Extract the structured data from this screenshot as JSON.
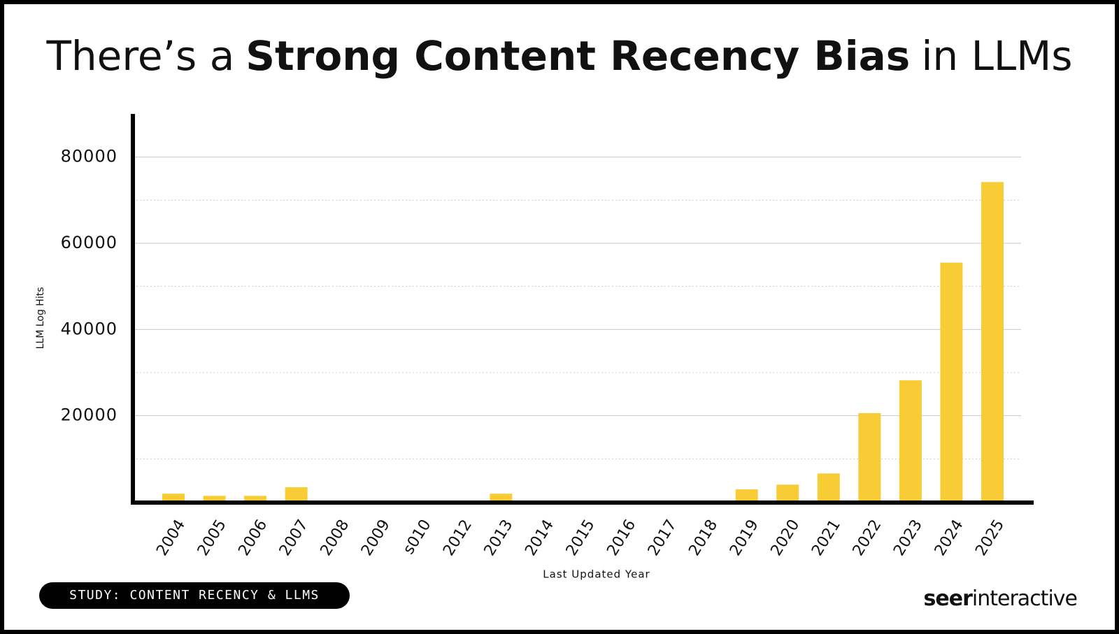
{
  "chart_data": {
    "type": "bar",
    "title": {
      "before": "There’s a",
      "bold": "Strong Content Recency Bias",
      "after": "in LLMs"
    },
    "x_label": "Last Updated Year",
    "y_label": "LLM Log Hits",
    "categories": [
      "2004",
      "2005",
      "2006",
      "2007",
      "2008",
      "2009",
      "s010",
      "2012",
      "2013",
      "2014",
      "2015",
      "2016",
      "2017",
      "2018",
      "2019",
      "2020",
      "2021",
      "2022",
      "2023",
      "2024",
      "2025"
    ],
    "values": [
      1900,
      1400,
      1400,
      3400,
      0,
      0,
      0,
      0,
      1900,
      0,
      0,
      0,
      0,
      0,
      2900,
      4000,
      6600,
      20600,
      28200,
      55500,
      74200
    ],
    "color": "#f8cc35",
    "ylim": [
      0,
      90000
    ],
    "yticks": [
      20000,
      40000,
      60000,
      80000
    ],
    "minor_yticks": [
      10000,
      30000,
      50000,
      70000
    ],
    "grid": true,
    "badge": "STUDY: CONTENT RECENCY & LLMS",
    "logo": {
      "bold": "seer",
      "regular": "interactive"
    }
  }
}
